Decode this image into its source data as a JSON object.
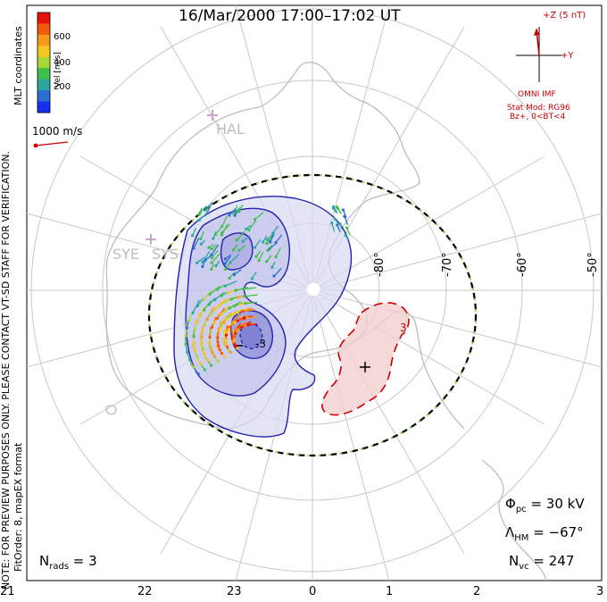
{
  "title": "16/Mar/2000  17:00–17:02  UT",
  "coordinates_label": "MLT coordinates",
  "colorbar": {
    "label": "Vel [m/s]",
    "ticks": [
      "600",
      "400",
      "200"
    ],
    "colors": [
      "#e8120c",
      "#f25a12",
      "#f59a1a",
      "#f5c61e",
      "#a6d934",
      "#3fbf4a",
      "#2ea6a0",
      "#2a6fd1",
      "#1530ee"
    ]
  },
  "scale_vector_label": "1000 m/s",
  "stations": [
    "HAL",
    "SYE",
    "SYS"
  ],
  "lat_labels": [
    "-80°",
    "-70°",
    "-60°",
    "-50°"
  ],
  "mlt_labels": [
    "21",
    "22",
    "23",
    "0",
    "1",
    "2",
    "3"
  ],
  "contour_labels": [
    "-3",
    "3"
  ],
  "imf": {
    "z_label": "+Z (5 nT)",
    "y_label": "+Y",
    "source": "OMNI IMF",
    "model_line1": "Stat Mod: RG96",
    "model_line2": "Bz+, 0<BT<4"
  },
  "stats": {
    "phi_pc": "30 kV",
    "lambda_hm": "−67°",
    "n_vc": "247",
    "n_rads": "3"
  },
  "notes": {
    "preview": "NOTE: FOR PREVIEW PURPOSES ONLY. PLEASE CONTACT VT-SD STAFF FOR VERIFICATION.",
    "fit": "FitOrder: 8, mapEX format"
  }
}
